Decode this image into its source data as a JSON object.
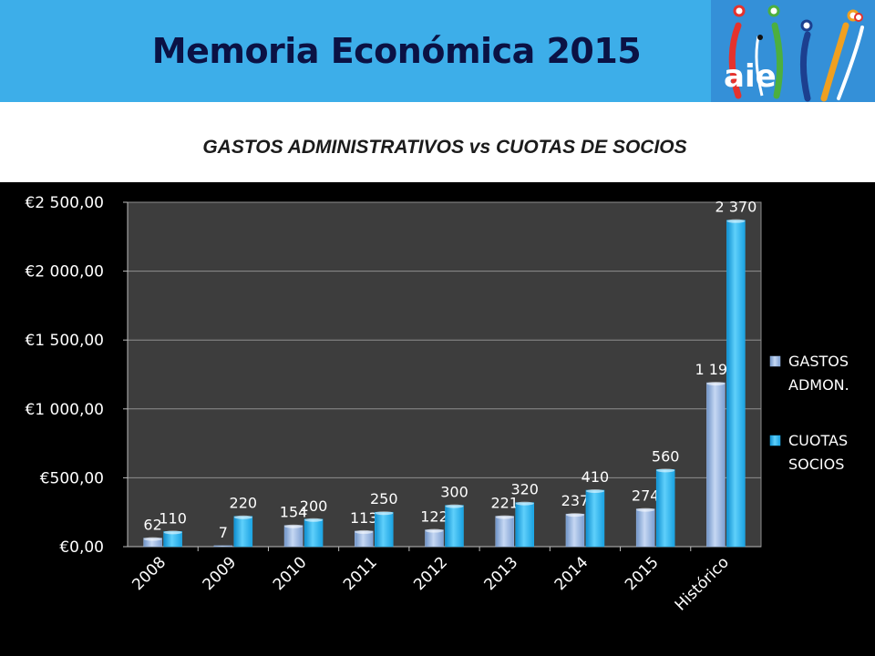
{
  "header": {
    "title": "Memoria Económica 2015",
    "logo_text": "aie"
  },
  "chart_data": {
    "type": "bar",
    "title": "GASTOS ADMINISTRATIVOS vs CUOTAS DE SOCIOS",
    "categories": [
      "2008",
      "2009",
      "2010",
      "2011",
      "2012",
      "2013",
      "2014",
      "2015",
      "Histórico"
    ],
    "series": [
      {
        "name": "GASTOS ADMON.",
        "values": [
          62,
          7,
          154,
          113,
          122,
          221,
          237,
          274,
          1190
        ],
        "labels": [
          "62",
          "7",
          "154",
          "113",
          "122",
          "221",
          "237",
          "274",
          "1 190"
        ],
        "color": "#9dbbe6"
      },
      {
        "name": "CUOTAS SOCIOS",
        "values": [
          110,
          220,
          200,
          250,
          300,
          320,
          410,
          560,
          2370
        ],
        "labels": [
          "110",
          "220",
          "200",
          "250",
          "300",
          "320",
          "410",
          "560",
          "2 370"
        ],
        "color": "#22b3f2"
      }
    ],
    "ylim": [
      0,
      2500
    ],
    "yticks": [
      0,
      500,
      1000,
      1500,
      2000,
      2500
    ],
    "ytick_labels": [
      "€0,00",
      "€500,00",
      "€1 000,00",
      "€1 500,00",
      "€2 000,00",
      "€2 500,00"
    ],
    "xlabel": "",
    "ylabel": "",
    "grid": true,
    "legend": "right",
    "legend_labels": [
      [
        "GASTOS",
        "ADMON."
      ],
      [
        "CUOTAS",
        "SOCIOS"
      ]
    ]
  }
}
